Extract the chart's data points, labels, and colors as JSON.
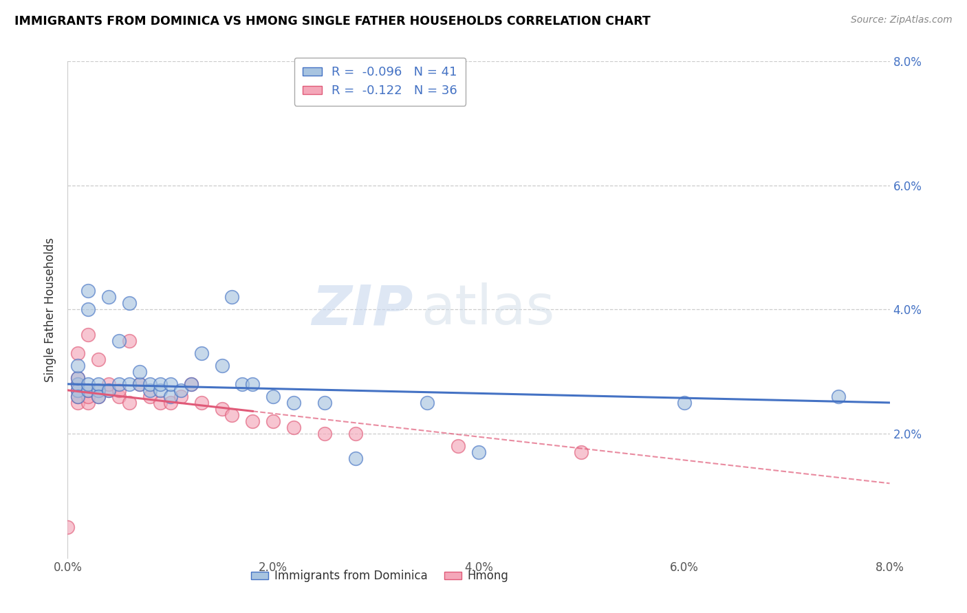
{
  "title": "IMMIGRANTS FROM DOMINICA VS HMONG SINGLE FATHER HOUSEHOLDS CORRELATION CHART",
  "source": "Source: ZipAtlas.com",
  "xlabel": "",
  "ylabel": "Single Father Households",
  "xlim": [
    0.0,
    0.08
  ],
  "ylim": [
    0.0,
    0.08
  ],
  "xtick_labels": [
    "0.0%",
    "2.0%",
    "4.0%",
    "6.0%",
    "8.0%"
  ],
  "xtick_vals": [
    0.0,
    0.02,
    0.04,
    0.06,
    0.08
  ],
  "ytick_labels": [
    "2.0%",
    "4.0%",
    "6.0%",
    "8.0%"
  ],
  "ytick_vals": [
    0.02,
    0.04,
    0.06,
    0.08
  ],
  "blue_color": "#a8c4e0",
  "pink_color": "#f4a7b9",
  "blue_line_color": "#4472c4",
  "pink_line_color": "#e05a78",
  "R_blue": -0.096,
  "N_blue": 41,
  "R_pink": -0.122,
  "N_pink": 36,
  "legend_text_color": "#4472c4",
  "watermark_zip": "ZIP",
  "watermark_atlas": "atlas",
  "blue_scatter_x": [
    0.001,
    0.001,
    0.001,
    0.001,
    0.001,
    0.002,
    0.002,
    0.002,
    0.002,
    0.003,
    0.003,
    0.003,
    0.004,
    0.004,
    0.005,
    0.005,
    0.006,
    0.006,
    0.007,
    0.007,
    0.008,
    0.008,
    0.009,
    0.009,
    0.01,
    0.01,
    0.011,
    0.012,
    0.013,
    0.015,
    0.016,
    0.017,
    0.018,
    0.02,
    0.022,
    0.025,
    0.028,
    0.035,
    0.04,
    0.06,
    0.075
  ],
  "blue_scatter_y": [
    0.027,
    0.028,
    0.029,
    0.031,
    0.026,
    0.027,
    0.028,
    0.043,
    0.04,
    0.027,
    0.028,
    0.026,
    0.042,
    0.027,
    0.035,
    0.028,
    0.028,
    0.041,
    0.028,
    0.03,
    0.027,
    0.028,
    0.027,
    0.028,
    0.026,
    0.028,
    0.027,
    0.028,
    0.033,
    0.031,
    0.042,
    0.028,
    0.028,
    0.026,
    0.025,
    0.025,
    0.016,
    0.025,
    0.017,
    0.025,
    0.026
  ],
  "pink_scatter_x": [
    0.0,
    0.001,
    0.001,
    0.001,
    0.001,
    0.001,
    0.001,
    0.002,
    0.002,
    0.002,
    0.002,
    0.003,
    0.003,
    0.003,
    0.004,
    0.004,
    0.005,
    0.005,
    0.006,
    0.006,
    0.007,
    0.008,
    0.009,
    0.01,
    0.011,
    0.012,
    0.013,
    0.015,
    0.016,
    0.018,
    0.02,
    0.022,
    0.025,
    0.028,
    0.038,
    0.05
  ],
  "pink_scatter_y": [
    0.005,
    0.025,
    0.026,
    0.027,
    0.028,
    0.029,
    0.033,
    0.025,
    0.026,
    0.027,
    0.036,
    0.026,
    0.027,
    0.032,
    0.027,
    0.028,
    0.026,
    0.027,
    0.025,
    0.035,
    0.028,
    0.026,
    0.025,
    0.025,
    0.026,
    0.028,
    0.025,
    0.024,
    0.023,
    0.022,
    0.022,
    0.021,
    0.02,
    0.02,
    0.018,
    0.017
  ],
  "blue_line_x0": 0.0,
  "blue_line_y0": 0.028,
  "blue_line_x1": 0.08,
  "blue_line_y1": 0.025,
  "pink_line_x0": 0.0,
  "pink_line_y0": 0.027,
  "pink_line_x1": 0.08,
  "pink_line_y1": 0.012
}
